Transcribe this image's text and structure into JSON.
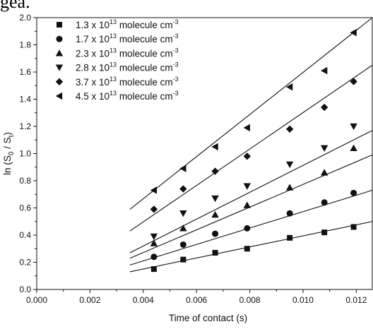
{
  "top_text": "gea.",
  "chart_data": {
    "type": "scatter",
    "xlabel": "Time of contact (s)",
    "ylabel": "ln (S0 / St)",
    "ylabel_parts": {
      "prefix": "ln (S",
      "sub1": "0",
      "middle": " / S",
      "sub2": "t",
      "suffix": ")"
    },
    "xlim": [
      0.0,
      0.0126
    ],
    "ylim": [
      0.0,
      2.0
    ],
    "x_ticks": [
      0.0,
      0.002,
      0.004,
      0.006,
      0.008,
      0.01,
      0.012
    ],
    "x_tick_labels": [
      "0.000",
      "0.002",
      "0.004",
      "0.006",
      "0.008",
      "0.010",
      "0.012"
    ],
    "y_ticks": [
      0.0,
      0.2,
      0.4,
      0.6,
      0.8,
      1.0,
      1.2,
      1.4,
      1.6,
      1.8,
      2.0
    ],
    "y_tick_labels": [
      "0.0",
      "0.2",
      "0.4",
      "0.6",
      "0.8",
      "1.0",
      "1.2",
      "1.4",
      "1.6",
      "1.8",
      "2.0"
    ],
    "x": [
      0.0044,
      0.0055,
      0.0067,
      0.0079,
      0.0095,
      0.0108,
      0.0119
    ],
    "legend_position": "top-left",
    "grid": false,
    "series": [
      {
        "name": "1.3 x 10^13 molecule cm^-3",
        "label_base": "1.3 x 10",
        "label_exp": "13",
        "label_unit": " molecule cm",
        "label_unit_exp": "-3",
        "marker": "square",
        "values": [
          0.15,
          0.22,
          0.27,
          0.3,
          0.38,
          0.42,
          0.46
        ],
        "fit": {
          "x": [
            0.0035,
            0.0126
          ],
          "y": [
            0.13,
            0.5
          ]
        }
      },
      {
        "name": "1.7 x 10^13 molecule cm^-3",
        "label_base": "1.7 x 10",
        "label_exp": "13",
        "label_unit": " molecule cm",
        "label_unit_exp": "-3",
        "marker": "circle",
        "values": [
          0.24,
          0.33,
          0.41,
          0.45,
          0.56,
          0.64,
          0.71
        ],
        "fit": {
          "x": [
            0.0035,
            0.0126
          ],
          "y": [
            0.18,
            0.73
          ]
        }
      },
      {
        "name": "2.3 x 10^13 molecule cm^-3",
        "label_base": "2.3 x 10",
        "label_exp": "13",
        "label_unit": " molecule cm",
        "label_unit_exp": "-3",
        "marker": "triangle-up",
        "values": [
          0.34,
          0.45,
          0.55,
          0.62,
          0.75,
          0.86,
          1.04
        ],
        "fit": {
          "x": [
            0.0035,
            0.0126
          ],
          "y": [
            0.23,
            0.99
          ]
        }
      },
      {
        "name": "2.8 x 10^13 molecule cm^-3",
        "label_base": "2.8 x 10",
        "label_exp": "13",
        "label_unit": " molecule cm",
        "label_unit_exp": "-3",
        "marker": "triangle-down",
        "values": [
          0.39,
          0.56,
          0.67,
          0.76,
          0.92,
          1.04,
          1.2
        ],
        "fit": {
          "x": [
            0.0035,
            0.0126
          ],
          "y": [
            0.27,
            1.17
          ]
        }
      },
      {
        "name": "3.7 x 10^13 molecule cm^-3",
        "label_base": "3.7 x 10",
        "label_exp": "13",
        "label_unit": " molecule cm",
        "label_unit_exp": "-3",
        "marker": "diamond",
        "values": [
          0.59,
          0.74,
          0.87,
          0.98,
          1.18,
          1.34,
          1.53
        ],
        "fit": {
          "x": [
            0.0035,
            0.0126
          ],
          "y": [
            0.43,
            1.65
          ]
        }
      },
      {
        "name": "4.5 x 10^13 molecule cm^-3",
        "label_base": "4.5 x 10",
        "label_exp": "13",
        "label_unit": " molecule cm",
        "label_unit_exp": "-3",
        "marker": "triangle-left",
        "values": [
          0.73,
          0.89,
          1.05,
          1.19,
          1.49,
          1.61,
          1.89
        ],
        "fit": {
          "x": [
            0.0035,
            0.0126
          ],
          "y": [
            0.59,
            2.0
          ]
        }
      }
    ]
  }
}
